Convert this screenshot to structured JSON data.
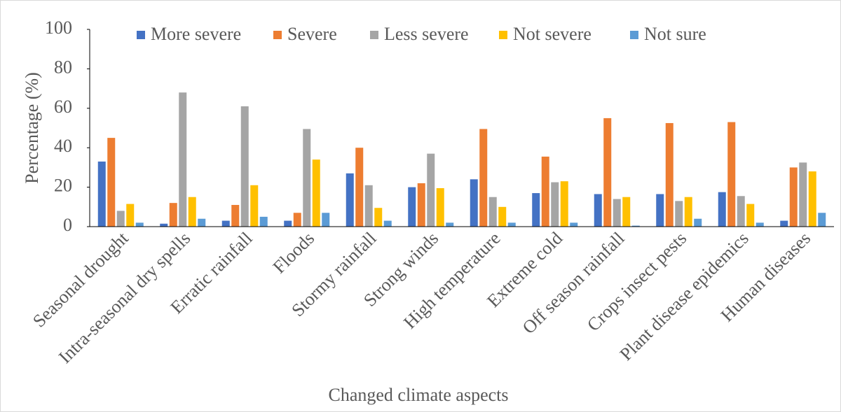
{
  "chart_data": {
    "type": "bar",
    "x_label": "Changed climate aspects",
    "y_label": "Percentage (%)",
    "categories": [
      "Seasonal drought",
      "Intra-seasonal dry spells",
      "Erratic rainfall",
      "Floods",
      "Stormy rainfall",
      "Strong winds",
      "High temperature",
      "Extreme cold",
      "Off season rainfall",
      "Crops insect pests",
      "Plant disease epidemics",
      "Human diseases"
    ],
    "series": [
      {
        "name": "More severe",
        "color": "#4472c4",
        "values": [
          33,
          1.5,
          3,
          3,
          27,
          20,
          24,
          17,
          16.5,
          16.5,
          17.5,
          3
        ]
      },
      {
        "name": "Severe",
        "color": "#ed7d31",
        "values": [
          45,
          12,
          11,
          7,
          40,
          22,
          49.5,
          35.5,
          55,
          52.5,
          53,
          30
        ]
      },
      {
        "name": "Less severe",
        "color": "#a5a5a5",
        "values": [
          8,
          68,
          61,
          49.5,
          21,
          37,
          15,
          22.5,
          14,
          13,
          15.5,
          32.5
        ]
      },
      {
        "name": "Not severe",
        "color": "#ffc000",
        "values": [
          11.5,
          15,
          21,
          34,
          9.5,
          19.5,
          10,
          23,
          15,
          15,
          11.5,
          28
        ]
      },
      {
        "name": "Not sure",
        "color": "#5b9bd5",
        "values": [
          2,
          4,
          5,
          7,
          3,
          2,
          2,
          2,
          0.5,
          4,
          2,
          7
        ]
      }
    ],
    "ylim": [
      0,
      100
    ],
    "yticks": [
      0,
      20,
      40,
      60,
      80,
      100
    ]
  }
}
